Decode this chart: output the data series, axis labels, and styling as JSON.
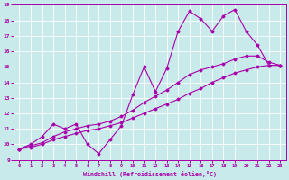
{
  "xlabel": "Windchill (Refroidissement éolien,°C)",
  "bg_color": "#c8eaea",
  "line_color": "#aa00aa",
  "xlim": [
    -0.5,
    23.5
  ],
  "ylim": [
    9,
    19
  ],
  "xticks": [
    0,
    1,
    2,
    3,
    4,
    5,
    6,
    7,
    8,
    9,
    10,
    11,
    12,
    13,
    14,
    15,
    16,
    17,
    18,
    19,
    20,
    21,
    22,
    23
  ],
  "yticks": [
    9,
    10,
    11,
    12,
    13,
    14,
    15,
    16,
    17,
    18,
    19
  ],
  "curve1_x": [
    0,
    1,
    2,
    3,
    4,
    5,
    6,
    7,
    8,
    9,
    10,
    11,
    12,
    13,
    14,
    15,
    16,
    17,
    18,
    19,
    20,
    21,
    22,
    23
  ],
  "curve1_y": [
    9.7,
    10.0,
    10.5,
    11.3,
    11.0,
    11.3,
    10.0,
    9.4,
    10.3,
    11.2,
    13.2,
    15.0,
    13.4,
    14.9,
    17.3,
    18.6,
    18.1,
    17.3,
    18.3,
    18.7,
    17.3,
    16.4,
    15.1,
    15.1
  ],
  "curve2_x": [
    0,
    1,
    2,
    3,
    4,
    5,
    6,
    7,
    8,
    9,
    10,
    11,
    12,
    13,
    14,
    15,
    16,
    17,
    18,
    19,
    20,
    21,
    22,
    23
  ],
  "curve2_y": [
    9.7,
    9.8,
    10.0,
    10.3,
    10.5,
    10.7,
    10.9,
    11.0,
    11.2,
    11.4,
    11.7,
    12.0,
    12.3,
    12.6,
    12.9,
    13.3,
    13.6,
    14.0,
    14.3,
    14.6,
    14.8,
    15.0,
    15.1,
    15.1
  ],
  "curve3_x": [
    0,
    1,
    2,
    3,
    4,
    5,
    6,
    7,
    8,
    9,
    10,
    11,
    12,
    13,
    14,
    15,
    16,
    17,
    18,
    19,
    20,
    21,
    22,
    23
  ],
  "curve3_y": [
    9.7,
    9.9,
    10.1,
    10.5,
    10.8,
    11.0,
    11.2,
    11.3,
    11.5,
    11.8,
    12.2,
    12.7,
    13.1,
    13.5,
    14.0,
    14.5,
    14.8,
    15.0,
    15.2,
    15.5,
    15.7,
    15.7,
    15.3,
    15.1
  ]
}
